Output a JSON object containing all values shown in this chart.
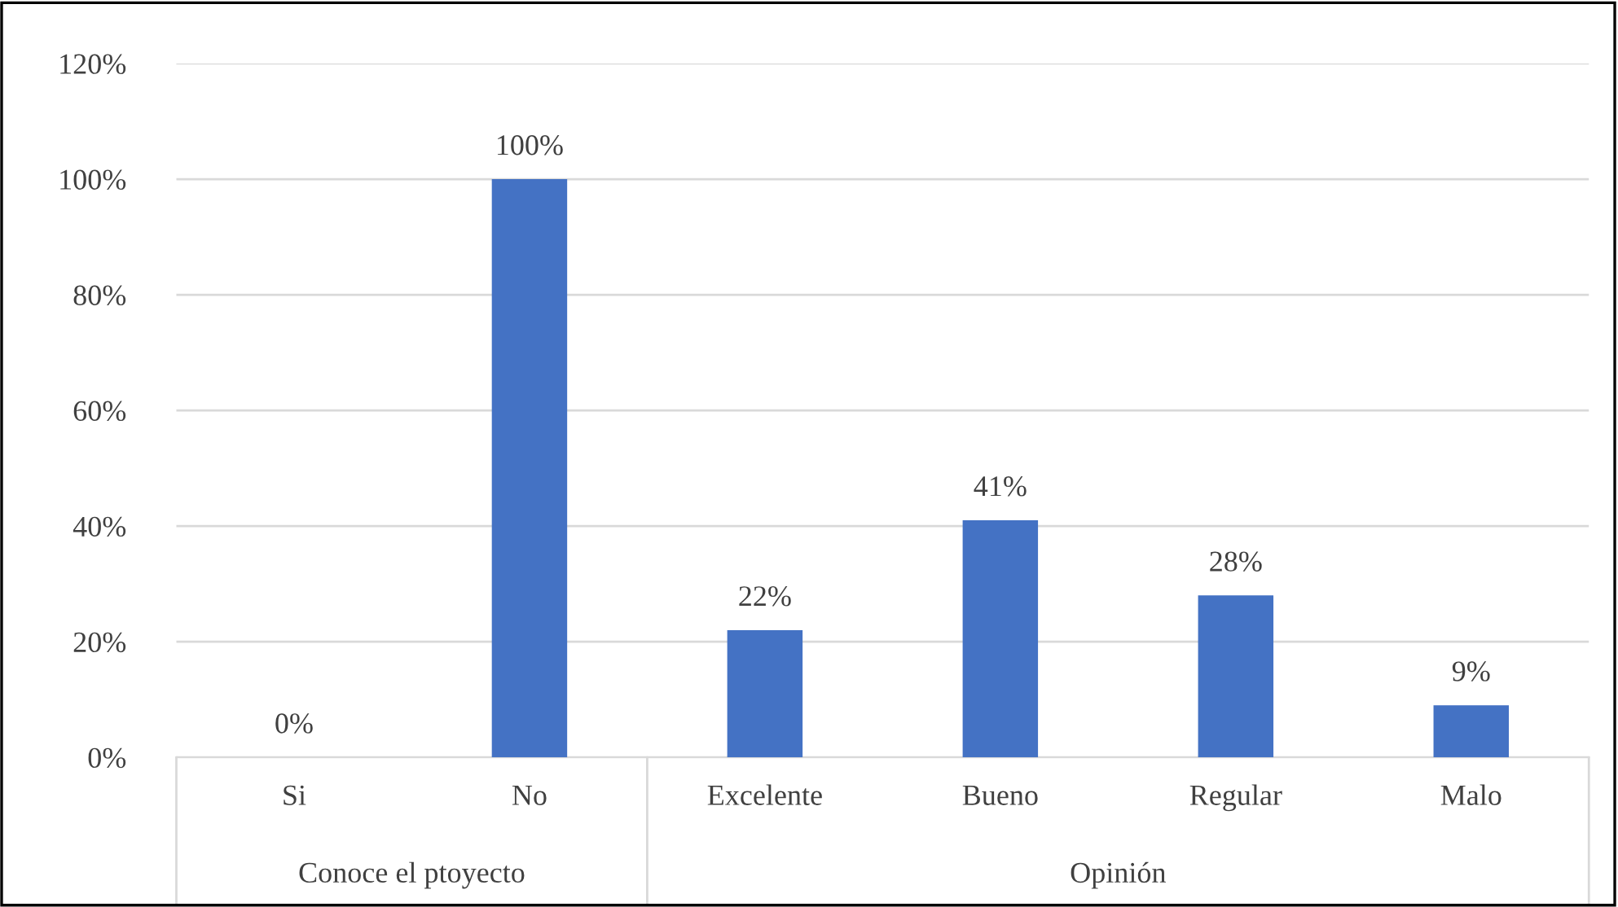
{
  "chart_data": {
    "type": "bar",
    "categories": [
      "Si",
      "No",
      "Excelente",
      "Bueno",
      "Regular",
      "Malo"
    ],
    "values": [
      0,
      100,
      22,
      41,
      28,
      9
    ],
    "value_labels": [
      "0%",
      "100%",
      "22%",
      "41%",
      "28%",
      "9%"
    ],
    "color": "#4472c4",
    "ylim": [
      0,
      120
    ],
    "yticks": [
      {
        "value": 0,
        "label": "0%"
      },
      {
        "value": 20,
        "label": "20%"
      },
      {
        "value": 40,
        "label": "40%"
      },
      {
        "value": 60,
        "label": "60%"
      },
      {
        "value": 80,
        "label": "80%"
      },
      {
        "value": 100,
        "label": "100%"
      },
      {
        "value": 120,
        "label": "120%"
      }
    ],
    "grid": "y",
    "annotations": [
      "Conoce el ptoyecto",
      "Opinión"
    ]
  }
}
